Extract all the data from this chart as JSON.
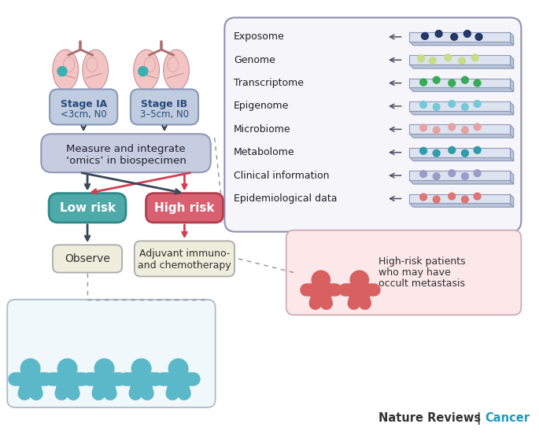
{
  "bg_color": "#ffffff",
  "omics_labels": [
    "Exposome",
    "Genome",
    "Transcriptome",
    "Epigenome",
    "Microbiome",
    "Metabolome",
    "Clinical information",
    "Epidemiological data"
  ],
  "stage_ia_text": "Stage IA\n<3cm, N0",
  "stage_ib_text": "Stage IB\n3–5cm, N0",
  "measure_text": "Measure and integrate\n‘omics’ in biospecimen",
  "low_risk_text": "Low risk",
  "high_risk_text": "High risk",
  "observe_text": "Observe",
  "adjuvant_text": "Adjuvant immuno-\nand chemotherapy",
  "high_risk_desc": "High-risk patients\nwho may have\noccult metastasis",
  "lung_color": "#f2c4c4",
  "lung_edge": "#c89090",
  "tumor_color": "#3ab0b0",
  "stage_box_color": "#c0cce0",
  "stage_box_edge": "#8898b8",
  "measure_box_color": "#c8cce0",
  "measure_box_edge": "#9098b8",
  "low_risk_color": "#4eaaa8",
  "low_risk_edge": "#2e8a88",
  "high_risk_color": "#d96070",
  "high_risk_edge": "#b04050",
  "observe_box_color": "#eeeedd",
  "observe_box_edge": "#aaaaaa",
  "adjuvant_box_color": "#eeeedd",
  "adjuvant_box_edge": "#aaaaaa",
  "high_risk_desc_box_color": "#fce8e8",
  "high_risk_desc_box_edge": "#ccaabb",
  "low_patient_color": "#5bb8c8",
  "high_patient_color": "#d96060",
  "omics_box_color": "#f5f5fa",
  "omics_box_edge": "#9090b0",
  "arrow_dark": "#3a4858",
  "arrow_red": "#d04050",
  "plate_top": "#dde4f0",
  "plate_side": "#b8c4d8",
  "plate_edge": "#9098b8",
  "omics_dot_data": [
    [
      [
        20,
        7,
        "#1a3060"
      ],
      [
        38,
        10,
        "#1a3060"
      ],
      [
        58,
        6,
        "#1a3060"
      ],
      [
        75,
        10,
        "#1a3060"
      ],
      [
        90,
        6,
        "#1a3060"
      ]
    ],
    [
      [
        15,
        8,
        "#c8dc80"
      ],
      [
        30,
        5,
        "#c8dc80"
      ],
      [
        50,
        9,
        "#c8dc80"
      ],
      [
        68,
        5,
        "#c8dc80"
      ],
      [
        85,
        9,
        "#c8dc80"
      ]
    ],
    [
      [
        18,
        7,
        "#30a850"
      ],
      [
        35,
        10,
        "#30a850"
      ],
      [
        55,
        6,
        "#30a850"
      ],
      [
        72,
        10,
        "#30a850"
      ],
      [
        88,
        6,
        "#30a850"
      ]
    ],
    [
      [
        18,
        8,
        "#70c8d8"
      ],
      [
        35,
        5,
        "#70c8d8"
      ],
      [
        55,
        9,
        "#70c8d8"
      ],
      [
        72,
        5,
        "#70c8d8"
      ],
      [
        88,
        9,
        "#70c8d8"
      ]
    ],
    [
      [
        18,
        8,
        "#e8a0a0"
      ],
      [
        35,
        5,
        "#e8a0a0"
      ],
      [
        55,
        9,
        "#e8a0a0"
      ],
      [
        72,
        5,
        "#e8a0a0"
      ],
      [
        88,
        9,
        "#e8a0a0"
      ]
    ],
    [
      [
        18,
        8,
        "#2898a8"
      ],
      [
        35,
        5,
        "#2898a8"
      ],
      [
        55,
        9,
        "#2898a8"
      ],
      [
        72,
        5,
        "#2898a8"
      ],
      [
        88,
        9,
        "#2898a8"
      ]
    ],
    [
      [
        18,
        8,
        "#9898c8"
      ],
      [
        35,
        5,
        "#9898c8"
      ],
      [
        55,
        9,
        "#9898c8"
      ],
      [
        72,
        5,
        "#9898c8"
      ],
      [
        88,
        9,
        "#9898c8"
      ]
    ],
    [
      [
        18,
        8,
        "#e07070"
      ],
      [
        35,
        5,
        "#e07070"
      ],
      [
        55,
        9,
        "#e07070"
      ],
      [
        72,
        5,
        "#e07070"
      ],
      [
        88,
        9,
        "#e07070"
      ]
    ]
  ],
  "footer_black": "Nature Reviews ",
  "footer_cyan": "Cancer",
  "footer_sep": "| ",
  "footer_color_black": "#333333",
  "footer_color_cyan": "#2299bb"
}
